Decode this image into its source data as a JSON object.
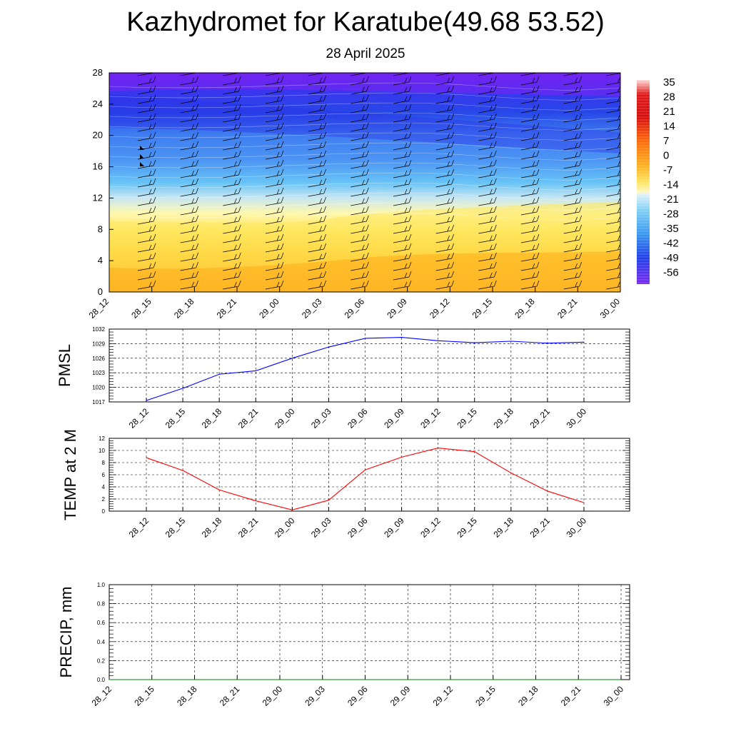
{
  "header": {
    "title": "Kazhydromet for Karatube(49.68 53.52)",
    "subtitle": "28 April 2025"
  },
  "chart_data": [
    {
      "type": "heatmap",
      "name": "cross-section",
      "x_tick_labels": [
        "28_12",
        "28_15",
        "28_18",
        "28_21",
        "29_00",
        "29_03",
        "29_06",
        "29_09",
        "29_12",
        "29_15",
        "29_18",
        "29_21",
        "30_00"
      ],
      "y_tick_labels": [
        "0",
        "4",
        "8",
        "12",
        "16",
        "20",
        "24",
        "28"
      ],
      "ylim": [
        0,
        28
      ],
      "colorbar_labels": [
        "35",
        "28",
        "21",
        "14",
        "7",
        "0",
        "-7",
        "-14",
        "-21",
        "-28",
        "-35",
        "-42",
        "-49",
        "-56"
      ],
      "colors": {
        "cold": "#7b22f0",
        "mid_blue": "#3b8ef0",
        "light": "#e6f3f8",
        "yellow": "#fff26e",
        "orange": "#ff8c0a",
        "red": "#d10d0d"
      }
    },
    {
      "type": "line",
      "name": "PMSL",
      "ylabel": "PMSL",
      "ylim": [
        1017,
        1032
      ],
      "y_ticks": [
        1017,
        1020,
        1023,
        1026,
        1029,
        1032
      ],
      "x_tick_labels": [
        "28_12",
        "28_15",
        "28_18",
        "28_21",
        "29_00",
        "29_03",
        "29_06",
        "29_09",
        "29_12",
        "29_15",
        "29_18",
        "29_21",
        "30_00"
      ],
      "series": [
        {
          "values": [
            1017.3,
            1019.8,
            1022.7,
            1023.4,
            1026.0,
            1028.3,
            1030.1,
            1030.3,
            1029.6,
            1029.2,
            1029.5,
            1029.1,
            1029.3
          ],
          "color": "#0000ff"
        }
      ],
      "grid": true
    },
    {
      "type": "line",
      "name": "TEMP",
      "ylabel": "TEMP at 2 M",
      "ylim": [
        0,
        12
      ],
      "y_ticks": [
        0,
        2,
        4,
        6,
        8,
        10,
        12
      ],
      "x_tick_labels": [
        "28_12",
        "28_15",
        "28_18",
        "28_21",
        "29_00",
        "29_03",
        "29_06",
        "29_09",
        "29_12",
        "29_15",
        "29_18",
        "29_21",
        "30_00"
      ],
      "series": [
        {
          "values": [
            8.8,
            6.7,
            3.5,
            1.7,
            0.2,
            1.8,
            6.8,
            8.9,
            10.4,
            9.8,
            6.3,
            3.3,
            1.4
          ],
          "color": "#ff0000"
        }
      ],
      "grid": true
    },
    {
      "type": "line",
      "name": "PRECIP",
      "ylabel": "PRECIP, mm",
      "ylim": [
        0,
        1.0
      ],
      "y_ticks": [
        "0.0",
        "0.2",
        "0.4",
        "0.6",
        "0.8",
        "1.0"
      ],
      "x_tick_labels": [
        "28_12",
        "28_15",
        "28_18",
        "28_21",
        "29_00",
        "29_03",
        "29_06",
        "29_09",
        "29_12",
        "29_15",
        "29_18",
        "29_21",
        "30_00"
      ],
      "series": [
        {
          "values": [
            0,
            0,
            0,
            0,
            0,
            0,
            0,
            0,
            0,
            0,
            0,
            0,
            0
          ],
          "color": "#008000"
        }
      ],
      "grid": true
    }
  ]
}
